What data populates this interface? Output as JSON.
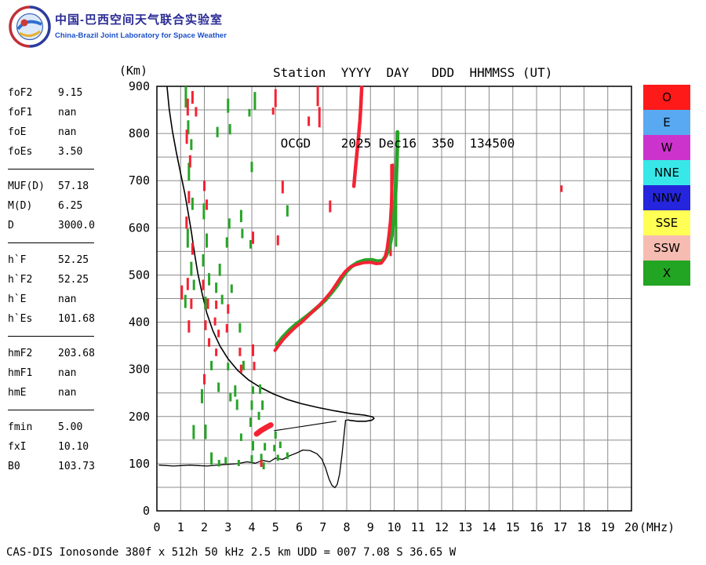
{
  "header": {
    "logo": {
      "title_zh": "中国-巴西空间天气联合实验室",
      "subtitle_en": "China-Brazil Joint Laboratory for Space Weather"
    },
    "station_line1": "Station  YYYY  DAY   DDD  HHMMSS (UT)",
    "station_line2": " OCGD    2025 Dec16  350  134500"
  },
  "params": {
    "groups": [
      [
        {
          "label": "foF2",
          "value": "9.15"
        },
        {
          "label": "foF1",
          "value": "nan"
        },
        {
          "label": "foE",
          "value": "nan"
        },
        {
          "label": "foEs",
          "value": "3.50"
        }
      ],
      [
        {
          "label": "MUF(D)",
          "value": "57.18"
        },
        {
          "label": "M(D)",
          "value": "6.25"
        },
        {
          "label": "D",
          "value": "3000.0"
        }
      ],
      [
        {
          "label": "h`F",
          "value": "52.25"
        },
        {
          "label": "h`F2",
          "value": "52.25"
        },
        {
          "label": "h`E",
          "value": "nan"
        },
        {
          "label": "h`Es",
          "value": "101.68"
        }
      ],
      [
        {
          "label": "hmF2",
          "value": "203.68"
        },
        {
          "label": "hmF1",
          "value": "nan"
        },
        {
          "label": "hmE",
          "value": "nan"
        }
      ],
      [
        {
          "label": "fmin",
          "value": "5.00"
        },
        {
          "label": "fxI",
          "value": "10.10"
        },
        {
          "label": "B0",
          "value": "103.73"
        }
      ]
    ]
  },
  "legend": {
    "items": [
      {
        "label": "O",
        "color": "#ff1a1a"
      },
      {
        "label": "E",
        "color": "#58a8f2"
      },
      {
        "label": "W",
        "color": "#cc33cc"
      },
      {
        "label": "NNE",
        "color": "#38e8e8"
      },
      {
        "label": "NNW",
        "color": "#2525dd"
      },
      {
        "label": "SSE",
        "color": "#ffff55"
      },
      {
        "label": "SSW",
        "color": "#f6bcb2"
      },
      {
        "label": "X",
        "color": "#22a522"
      }
    ]
  },
  "footer": {
    "caption": "CAS-DIS Ionosonde 380f x 512h 50 kHz 2.5 km UDD = 007 7.08 S 36.65 W"
  },
  "chart_data": {
    "type": "scatter",
    "title": "Ionogram OCGD 2025 Dec16 350 134500 UT",
    "xlabel": "(MHz)",
    "ylabel": "(Km)",
    "xlim": [
      0,
      20
    ],
    "ylim": [
      0,
      900
    ],
    "x_ticks": [
      0,
      1,
      2,
      3,
      4,
      5,
      6,
      7,
      8,
      9,
      10,
      11,
      12,
      13,
      14,
      15,
      16,
      17,
      18,
      19,
      20
    ],
    "y_ticks": [
      0,
      100,
      200,
      300,
      400,
      500,
      600,
      700,
      800,
      900
    ],
    "grid_step": {
      "x_mhz": 1,
      "y_km": 50
    },
    "grid_color": "#8c8c8c",
    "legend_position": "right",
    "echo_colors": {
      "o_mode": "#f42233",
      "x_mode": "#28a428"
    },
    "o_mode": {
      "dashes": [
        [
          1.05,
          448,
          478
        ],
        [
          1.3,
          838,
          874
        ],
        [
          1.5,
          863,
          890
        ],
        [
          1.65,
          836,
          856
        ],
        [
          1.26,
          778,
          808
        ],
        [
          1.4,
          728,
          754
        ],
        [
          1.35,
          652,
          678
        ],
        [
          1.25,
          598,
          624
        ],
        [
          1.5,
          543,
          568
        ],
        [
          1.3,
          468,
          494
        ],
        [
          1.45,
          428,
          450
        ],
        [
          1.35,
          378,
          404
        ],
        [
          2.0,
          678,
          700
        ],
        [
          2.1,
          638,
          660
        ],
        [
          1.95,
          468,
          490
        ],
        [
          2.15,
          428,
          450
        ],
        [
          2.05,
          383,
          404
        ],
        [
          2.2,
          348,
          366
        ],
        [
          2.0,
          268,
          290
        ],
        [
          2.5,
          428,
          446
        ],
        [
          2.45,
          393,
          410
        ],
        [
          2.6,
          368,
          384
        ],
        [
          2.5,
          328,
          344
        ],
        [
          2.95,
          378,
          396
        ],
        [
          3.0,
          418,
          438
        ],
        [
          3.5,
          328,
          346
        ],
        [
          3.55,
          293,
          310
        ],
        [
          4.05,
          328,
          353
        ],
        [
          4.1,
          298,
          316
        ],
        [
          4.05,
          566,
          592
        ],
        [
          4.4,
          93,
          108
        ],
        [
          4.9,
          840,
          855
        ],
        [
          5.0,
          856,
          894
        ],
        [
          5.1,
          563,
          584
        ],
        [
          5.3,
          673,
          700
        ],
        [
          6.4,
          816,
          836
        ],
        [
          6.78,
          858,
          900
        ],
        [
          6.85,
          813,
          856
        ],
        [
          7.3,
          633,
          658
        ],
        [
          9.85,
          540,
          640
        ],
        [
          9.88,
          645,
          735
        ],
        [
          17.05,
          676,
          690
        ]
      ],
      "main_trace": [
        [
          4.98,
          340
        ],
        [
          5.15,
          352
        ],
        [
          5.35,
          365
        ],
        [
          5.6,
          378
        ],
        [
          5.85,
          390
        ],
        [
          6.1,
          400
        ],
        [
          6.35,
          412
        ],
        [
          6.6,
          424
        ],
        [
          6.85,
          436
        ],
        [
          7.1,
          450
        ],
        [
          7.35,
          465
        ],
        [
          7.55,
          480
        ],
        [
          7.75,
          495
        ],
        [
          7.95,
          508
        ],
        [
          8.15,
          517
        ],
        [
          8.4,
          522
        ],
        [
          8.7,
          526
        ],
        [
          9.0,
          527
        ],
        [
          9.25,
          524
        ],
        [
          9.45,
          525
        ],
        [
          9.6,
          535
        ],
        [
          9.7,
          555
        ],
        [
          9.78,
          585
        ],
        [
          9.84,
          615
        ],
        [
          9.88,
          648
        ],
        [
          9.9,
          680
        ],
        [
          9.92,
          710
        ],
        [
          9.93,
          733
        ]
      ],
      "cusp_blob": [
        [
          4.2,
          163
        ],
        [
          4.38,
          170
        ],
        [
          4.58,
          176
        ],
        [
          4.8,
          182
        ]
      ],
      "upper_streak": [
        [
          8.3,
          688
        ],
        [
          8.36,
          722
        ],
        [
          8.43,
          758
        ],
        [
          8.5,
          794
        ],
        [
          8.56,
          828
        ],
        [
          8.6,
          862
        ],
        [
          8.63,
          898
        ]
      ]
    },
    "x_mode": {
      "dashes": [
        [
          1.22,
          855,
          900
        ],
        [
          1.32,
          798,
          828
        ],
        [
          1.45,
          765,
          788
        ],
        [
          1.35,
          700,
          738
        ],
        [
          1.5,
          638,
          664
        ],
        [
          1.3,
          558,
          598
        ],
        [
          1.45,
          498,
          528
        ],
        [
          1.56,
          468,
          490
        ],
        [
          1.2,
          430,
          458
        ],
        [
          1.55,
          152,
          182
        ],
        [
          1.9,
          228,
          258
        ],
        [
          1.95,
          518,
          544
        ],
        [
          1.98,
          618,
          652
        ],
        [
          2.05,
          428,
          454
        ],
        [
          2.05,
          152,
          183
        ],
        [
          2.1,
          558,
          588
        ],
        [
          2.2,
          478,
          504
        ],
        [
          2.3,
          298,
          318
        ],
        [
          2.3,
          98,
          124
        ],
        [
          2.5,
          462,
          484
        ],
        [
          2.55,
          792,
          814
        ],
        [
          2.6,
          252,
          272
        ],
        [
          2.62,
          94,
          108
        ],
        [
          2.65,
          498,
          524
        ],
        [
          2.75,
          438,
          458
        ],
        [
          2.9,
          100,
          114
        ],
        [
          2.95,
          558,
          580
        ],
        [
          3.0,
          844,
          874
        ],
        [
          3.0,
          298,
          314
        ],
        [
          3.05,
          598,
          620
        ],
        [
          3.08,
          798,
          820
        ],
        [
          3.1,
          232,
          250
        ],
        [
          3.15,
          462,
          480
        ],
        [
          3.3,
          242,
          266
        ],
        [
          3.38,
          214,
          236
        ],
        [
          3.45,
          95,
          108
        ],
        [
          3.5,
          378,
          398
        ],
        [
          3.55,
          612,
          638
        ],
        [
          3.55,
          148,
          164
        ],
        [
          3.6,
          578,
          598
        ],
        [
          3.65,
          298,
          318
        ],
        [
          3.9,
          836,
          852
        ],
        [
          3.95,
          556,
          574
        ],
        [
          3.95,
          178,
          198
        ],
        [
          4.0,
          718,
          740
        ],
        [
          4.0,
          214,
          234
        ],
        [
          4.0,
          102,
          118
        ],
        [
          4.05,
          248,
          264
        ],
        [
          4.05,
          128,
          148
        ],
        [
          4.13,
          850,
          888
        ],
        [
          4.3,
          193,
          210
        ],
        [
          4.35,
          248,
          268
        ],
        [
          4.4,
          106,
          121
        ],
        [
          4.45,
          214,
          234
        ],
        [
          4.5,
          88,
          103
        ],
        [
          4.55,
          128,
          144
        ],
        [
          4.95,
          126,
          140
        ],
        [
          5.0,
          153,
          168
        ],
        [
          5.1,
          106,
          119
        ],
        [
          5.2,
          133,
          147
        ],
        [
          5.5,
          110,
          124
        ],
        [
          5.5,
          624,
          648
        ],
        [
          10.08,
          560,
          700
        ],
        [
          10.11,
          700,
          805
        ]
      ],
      "main_trace": [
        [
          5.05,
          352
        ],
        [
          5.3,
          368
        ],
        [
          5.6,
          384
        ],
        [
          5.9,
          397
        ],
        [
          6.2,
          408
        ],
        [
          6.5,
          420
        ],
        [
          6.8,
          433
        ],
        [
          7.1,
          447
        ],
        [
          7.35,
          462
        ],
        [
          7.6,
          478
        ],
        [
          7.8,
          494
        ],
        [
          8.0,
          508
        ],
        [
          8.2,
          518
        ],
        [
          8.45,
          526
        ],
        [
          8.75,
          531
        ],
        [
          9.05,
          532
        ],
        [
          9.3,
          529
        ],
        [
          9.5,
          530
        ],
        [
          9.65,
          540
        ],
        [
          9.8,
          558
        ],
        [
          9.9,
          585
        ],
        [
          9.98,
          620
        ],
        [
          10.04,
          660
        ],
        [
          10.08,
          700
        ],
        [
          10.11,
          740
        ],
        [
          10.13,
          775
        ],
        [
          10.14,
          803
        ]
      ]
    },
    "profile": {
      "color": "#000000",
      "density_profile": [
        [
          0.43,
          898
        ],
        [
          0.52,
          852
        ],
        [
          0.65,
          806
        ],
        [
          0.82,
          760
        ],
        [
          1.0,
          715
        ],
        [
          1.18,
          672
        ],
        [
          1.32,
          632
        ],
        [
          1.45,
          592
        ],
        [
          1.58,
          548
        ],
        [
          1.72,
          505
        ],
        [
          1.9,
          462
        ],
        [
          2.1,
          420
        ],
        [
          2.35,
          383
        ],
        [
          2.65,
          350
        ],
        [
          3.0,
          322
        ],
        [
          3.4,
          298
        ],
        [
          3.85,
          278
        ],
        [
          4.35,
          262
        ],
        [
          4.9,
          248
        ],
        [
          5.5,
          236
        ],
        [
          6.1,
          227
        ],
        [
          6.8,
          219
        ],
        [
          7.5,
          212
        ],
        [
          8.2,
          206
        ],
        [
          8.75,
          203
        ],
        [
          9.1,
          199
        ],
        [
          9.15,
          196
        ],
        [
          9.05,
          192
        ],
        [
          8.8,
          190
        ],
        [
          8.45,
          190
        ],
        [
          8.1,
          192
        ]
      ],
      "bottom_trace": [
        [
          0.1,
          97
        ],
        [
          0.7,
          95
        ],
        [
          1.4,
          97
        ],
        [
          2.1,
          95
        ],
        [
          2.8,
          98
        ],
        [
          3.4,
          100
        ],
        [
          3.8,
          104
        ],
        [
          4.15,
          101
        ],
        [
          4.45,
          107
        ],
        [
          4.75,
          104
        ],
        [
          5.0,
          112
        ],
        [
          5.3,
          109
        ],
        [
          5.6,
          117
        ],
        [
          5.9,
          123
        ],
        [
          6.15,
          129
        ],
        [
          6.45,
          128
        ],
        [
          6.75,
          121
        ],
        [
          6.95,
          110
        ],
        [
          7.1,
          92
        ],
        [
          7.25,
          68
        ],
        [
          7.38,
          54
        ],
        [
          7.5,
          49
        ],
        [
          7.6,
          56
        ],
        [
          7.7,
          78
        ],
        [
          7.8,
          118
        ],
        [
          7.88,
          158
        ],
        [
          7.95,
          192
        ],
        [
          8.08,
          193
        ]
      ],
      "baseline": [
        [
          4.95,
          170
        ],
        [
          7.55,
          190
        ]
      ]
    }
  }
}
